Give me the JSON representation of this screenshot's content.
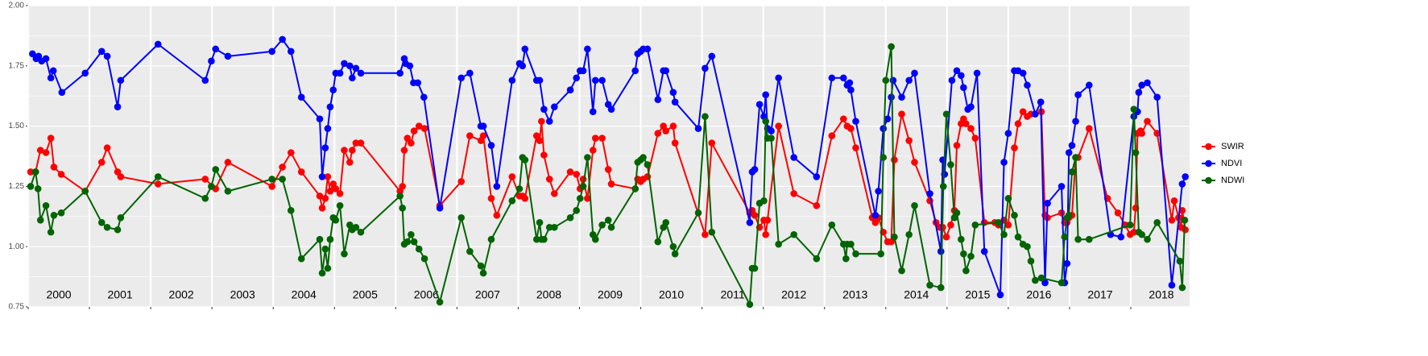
{
  "chart_data": {
    "type": "line",
    "xlim": [
      2000,
      2018.96
    ],
    "xticks": [
      2000,
      2001,
      2002,
      2003,
      2004,
      2005,
      2006,
      2007,
      2008,
      2009,
      2010,
      2011,
      2012,
      2013,
      2014,
      2015,
      2016,
      2017,
      2018
    ],
    "ylim": [
      0.75,
      2.0
    ],
    "yticks": [
      {
        "value": 0.75,
        "label": "0.75"
      },
      {
        "value": 1,
        "label": "1.00"
      },
      {
        "value": 1.25,
        "label": "1.25"
      },
      {
        "value": 1.5,
        "label": "1.50"
      },
      {
        "value": 1.75,
        "label": "1.75"
      },
      {
        "value": 2,
        "label": "2.00"
      }
    ],
    "grid": true,
    "legend": "right",
    "annotations": [
      {
        "text": "2000",
        "x": 2000.5
      },
      {
        "text": "2001",
        "x": 2001.5
      },
      {
        "text": "2002",
        "x": 2002.5
      },
      {
        "text": "2003",
        "x": 2003.5
      },
      {
        "text": "2004",
        "x": 2004.5
      },
      {
        "text": "2005",
        "x": 2005.5
      },
      {
        "text": "2006",
        "x": 2006.5
      },
      {
        "text": "2007",
        "x": 2007.5
      },
      {
        "text": "2008",
        "x": 2008.5
      },
      {
        "text": "2009",
        "x": 2009.5
      },
      {
        "text": "2010",
        "x": 2010.5
      },
      {
        "text": "2011",
        "x": 2011.5
      },
      {
        "text": "2012",
        "x": 2012.5
      },
      {
        "text": "2013",
        "x": 2013.5
      },
      {
        "text": "2014",
        "x": 2014.5
      },
      {
        "text": "2015",
        "x": 2015.5
      },
      {
        "text": "2016",
        "x": 2016.5
      },
      {
        "text": "2017",
        "x": 2017.5
      },
      {
        "text": "2018",
        "x": 2018.5
      }
    ],
    "series": [
      {
        "name": "SWIR",
        "color": "#ff0000",
        "x": [
          2000.04,
          2000.12,
          2000.2,
          2000.29,
          2000.37,
          2000.42,
          2000.54,
          2000.93,
          2001.2,
          2001.29,
          2001.46,
          2001.51,
          2002.12,
          2002.89,
          2003.06,
          2003.26,
          2003.98,
          2004.15,
          2004.29,
          2004.46,
          2004.76,
          2004.8,
          2004.85,
          2004.89,
          2004.93,
          2004.98,
          2005.02,
          2005.09,
          2005.16,
          2005.25,
          2005.29,
          2005.35,
          2005.43,
          2006.07,
          2006.11,
          2006.14,
          2006.19,
          2006.25,
          2006.3,
          2006.38,
          2006.47,
          2006.72,
          2007.07,
          2007.21,
          2007.39,
          2007.43,
          2007.56,
          2007.65,
          2007.9,
          2008.02,
          2008.07,
          2008.11,
          2008.3,
          2008.35,
          2008.38,
          2008.42,
          2008.51,
          2008.59,
          2008.85,
          2008.95,
          2009.01,
          2009.06,
          2009.13,
          2009.22,
          2009.26,
          2009.37,
          2009.47,
          2009.52,
          2009.91,
          2009.95,
          2010.0,
          2010.04,
          2010.11,
          2010.28,
          2010.37,
          2010.41,
          2010.53,
          2010.56,
          2011.05,
          2011.16,
          2011.78,
          2011.82,
          2011.86,
          2011.94,
          2012.01,
          2012.04,
          2012.07,
          2012.25,
          2012.5,
          2012.87,
          2013.12,
          2013.31,
          2013.37,
          2013.43,
          2013.51,
          2013.78,
          2013.83,
          2013.88,
          2013.96,
          2014.03,
          2014.09,
          2014.14,
          2014.26,
          2014.38,
          2014.47,
          2014.72,
          2014.82,
          2014.88,
          2014.93,
          2014.99,
          2015.06,
          2015.12,
          2015.16,
          2015.23,
          2015.27,
          2015.31,
          2015.39,
          2015.46,
          2015.61,
          2015.78,
          2015.84,
          2015.93,
          2016.0,
          2016.1,
          2016.16,
          2016.24,
          2016.31,
          2016.37,
          2016.54,
          2016.6,
          2016.64,
          2016.87,
          2016.92,
          2016.96,
          2016.99,
          2017.04,
          2017.1,
          2017.14,
          2017.32,
          2017.62,
          2017.79,
          2017.91,
          2017.99,
          2018.05,
          2018.08,
          2018.11,
          2018.16,
          2018.18,
          2018.27,
          2018.43,
          2018.67,
          2018.71,
          2018.78,
          2018.82,
          2018.84,
          2018.89
        ],
        "values": [
          1.31,
          1.31,
          1.4,
          1.39,
          1.45,
          1.33,
          1.3,
          1.23,
          1.35,
          1.41,
          1.31,
          1.29,
          1.26,
          1.28,
          1.24,
          1.35,
          1.25,
          1.33,
          1.39,
          1.31,
          1.21,
          1.16,
          1.2,
          1.29,
          1.23,
          1.26,
          1.24,
          1.22,
          1.4,
          1.35,
          1.4,
          1.43,
          1.43,
          1.23,
          1.25,
          1.4,
          1.45,
          1.43,
          1.48,
          1.5,
          1.49,
          1.17,
          1.27,
          1.46,
          1.44,
          1.46,
          1.2,
          1.13,
          1.29,
          1.21,
          1.21,
          1.2,
          1.46,
          1.44,
          1.52,
          1.38,
          1.28,
          1.22,
          1.31,
          1.3,
          1.24,
          1.28,
          1.2,
          1.4,
          1.45,
          1.45,
          1.32,
          1.26,
          1.24,
          1.28,
          1.27,
          1.28,
          1.29,
          1.47,
          1.5,
          1.48,
          1.5,
          1.43,
          1.05,
          1.43,
          1.14,
          1.15,
          1.13,
          1.08,
          1.11,
          1.05,
          1.11,
          1.5,
          1.22,
          1.17,
          1.46,
          1.53,
          1.5,
          1.49,
          1.41,
          1.12,
          1.1,
          1.12,
          1.06,
          1.02,
          1.02,
          1.36,
          1.55,
          1.44,
          1.35,
          1.19,
          1.1,
          1.08,
          1.08,
          1.04,
          1.09,
          1.15,
          1.42,
          1.51,
          1.53,
          1.51,
          1.49,
          1.45,
          1.1,
          1.1,
          1.09,
          1.11,
          1.09,
          1.41,
          1.51,
          1.56,
          1.54,
          1.55,
          1.56,
          1.13,
          1.12,
          1.14,
          1.1,
          1.1,
          1.12,
          1.13,
          1.37,
          1.37,
          1.49,
          1.2,
          1.14,
          1.09,
          1.05,
          1.06,
          1.16,
          1.47,
          1.48,
          1.47,
          1.52,
          1.47,
          1.11,
          1.19,
          1.12,
          1.08,
          1.15,
          1.07
        ]
      },
      {
        "name": "NDVI",
        "color": "#0000ff",
        "x": [
          2000.07,
          2000.13,
          2000.17,
          2000.22,
          2000.29,
          2000.37,
          2000.41,
          2000.55,
          2000.93,
          2001.2,
          2001.29,
          2001.46,
          2001.51,
          2002.12,
          2002.89,
          2002.99,
          2003.06,
          2003.26,
          2003.98,
          2004.15,
          2004.29,
          2004.46,
          2004.76,
          2004.8,
          2004.85,
          2004.89,
          2004.93,
          2004.98,
          2005.02,
          2005.09,
          2005.16,
          2005.25,
          2005.29,
          2005.35,
          2005.43,
          2006.07,
          2006.14,
          2006.16,
          2006.23,
          2006.29,
          2006.36,
          2006.46,
          2006.72,
          2007.07,
          2007.21,
          2007.39,
          2007.43,
          2007.56,
          2007.65,
          2007.9,
          2008.02,
          2008.07,
          2008.11,
          2008.3,
          2008.35,
          2008.42,
          2008.51,
          2008.59,
          2008.85,
          2008.95,
          2009.01,
          2009.06,
          2009.13,
          2009.22,
          2009.26,
          2009.37,
          2009.47,
          2009.52,
          2009.91,
          2009.95,
          2010.0,
          2010.04,
          2010.11,
          2010.28,
          2010.37,
          2010.41,
          2010.53,
          2010.56,
          2010.94,
          2011.05,
          2011.16,
          2011.78,
          2011.82,
          2011.86,
          2011.94,
          2012.01,
          2012.04,
          2012.07,
          2012.13,
          2012.25,
          2012.5,
          2012.87,
          2013.12,
          2013.31,
          2013.37,
          2013.41,
          2013.43,
          2013.51,
          2013.83,
          2013.88,
          2013.96,
          2014.03,
          2014.09,
          2014.12,
          2014.26,
          2014.38,
          2014.47,
          2014.72,
          2014.9,
          2014.93,
          2014.96,
          2015.08,
          2015.16,
          2015.23,
          2015.27,
          2015.34,
          2015.39,
          2015.49,
          2015.61,
          2015.87,
          2015.93,
          2016.0,
          2016.1,
          2016.16,
          2016.24,
          2016.31,
          2016.44,
          2016.53,
          2016.6,
          2016.64,
          2016.87,
          2016.92,
          2016.96,
          2016.99,
          2017.04,
          2017.1,
          2017.14,
          2017.32,
          2017.67,
          2017.84,
          2018.05,
          2018.11,
          2018.13,
          2018.18,
          2018.27,
          2018.43,
          2018.67,
          2018.84,
          2018.89
        ],
        "values": [
          1.8,
          1.78,
          1.79,
          1.77,
          1.78,
          1.7,
          1.73,
          1.64,
          1.72,
          1.81,
          1.79,
          1.58,
          1.69,
          1.84,
          1.69,
          1.77,
          1.82,
          1.79,
          1.81,
          1.86,
          1.81,
          1.62,
          1.53,
          1.29,
          1.41,
          1.49,
          1.58,
          1.65,
          1.72,
          1.72,
          1.76,
          1.75,
          1.7,
          1.74,
          1.72,
          1.72,
          1.78,
          1.76,
          1.75,
          1.68,
          1.68,
          1.62,
          1.16,
          1.7,
          1.72,
          1.5,
          1.5,
          1.42,
          1.25,
          1.69,
          1.76,
          1.75,
          1.82,
          1.69,
          1.69,
          1.57,
          1.52,
          1.58,
          1.65,
          1.7,
          1.73,
          1.73,
          1.82,
          1.56,
          1.69,
          1.69,
          1.59,
          1.57,
          1.73,
          1.8,
          1.81,
          1.82,
          1.82,
          1.61,
          1.73,
          1.73,
          1.64,
          1.6,
          1.49,
          1.74,
          1.79,
          1.1,
          1.31,
          1.32,
          1.59,
          1.54,
          1.63,
          1.49,
          1.48,
          1.7,
          1.37,
          1.29,
          1.7,
          1.7,
          1.67,
          1.68,
          1.65,
          1.52,
          1.13,
          1.23,
          1.49,
          1.53,
          1.62,
          1.69,
          1.62,
          1.69,
          1.72,
          1.22,
          0.98,
          1.36,
          1.3,
          1.69,
          1.73,
          1.71,
          1.66,
          1.57,
          1.58,
          1.72,
          0.98,
          0.8,
          1.35,
          1.47,
          1.73,
          1.73,
          1.72,
          1.67,
          1.55,
          1.6,
          0.85,
          1.18,
          1.25,
          0.85,
          0.93,
          1.39,
          1.42,
          1.52,
          1.63,
          1.67,
          1.05,
          1.04,
          1.54,
          1.56,
          1.64,
          1.67,
          1.68,
          1.62,
          0.84,
          1.26,
          1.29
        ]
      },
      {
        "name": "NDWI",
        "color": "#006400",
        "x": [
          2000.04,
          2000.12,
          2000.16,
          2000.2,
          2000.29,
          2000.37,
          2000.42,
          2000.54,
          2000.93,
          2001.2,
          2001.29,
          2001.46,
          2001.51,
          2002.12,
          2002.89,
          2002.99,
          2003.06,
          2003.26,
          2003.98,
          2004.15,
          2004.29,
          2004.46,
          2004.76,
          2004.8,
          2004.85,
          2004.89,
          2004.93,
          2004.98,
          2005.02,
          2005.09,
          2005.16,
          2005.25,
          2005.29,
          2005.35,
          2005.43,
          2006.07,
          2006.11,
          2006.14,
          2006.19,
          2006.25,
          2006.3,
          2006.38,
          2006.47,
          2006.72,
          2007.07,
          2007.21,
          2007.39,
          2007.43,
          2007.56,
          2007.9,
          2008.02,
          2008.07,
          2008.11,
          2008.3,
          2008.35,
          2008.38,
          2008.42,
          2008.51,
          2008.59,
          2008.85,
          2008.95,
          2009.01,
          2009.06,
          2009.13,
          2009.22,
          2009.26,
          2009.37,
          2009.47,
          2009.52,
          2009.91,
          2009.95,
          2010.0,
          2010.04,
          2010.11,
          2010.28,
          2010.37,
          2010.41,
          2010.53,
          2010.56,
          2010.94,
          2011.05,
          2011.16,
          2011.78,
          2011.82,
          2011.86,
          2011.94,
          2012.01,
          2012.04,
          2012.07,
          2012.13,
          2012.25,
          2012.5,
          2012.87,
          2013.12,
          2013.31,
          2013.35,
          2013.37,
          2013.43,
          2013.51,
          2013.92,
          2013.96,
          2014.0,
          2014.09,
          2014.14,
          2014.26,
          2014.38,
          2014.47,
          2014.72,
          2014.9,
          2014.94,
          2014.99,
          2015.06,
          2015.12,
          2015.16,
          2015.23,
          2015.27,
          2015.31,
          2015.39,
          2015.46,
          2015.84,
          2015.93,
          2016.0,
          2016.1,
          2016.16,
          2016.24,
          2016.31,
          2016.37,
          2016.44,
          2016.54,
          2016.87,
          2016.92,
          2016.96,
          2016.99,
          2017.04,
          2017.1,
          2017.14,
          2017.32,
          2017.99,
          2018.05,
          2018.08,
          2018.13,
          2018.18,
          2018.27,
          2018.43,
          2018.8,
          2018.84,
          2018.88
        ],
        "values": [
          1.25,
          1.31,
          1.24,
          1.11,
          1.17,
          1.06,
          1.13,
          1.14,
          1.23,
          1.1,
          1.08,
          1.07,
          1.12,
          1.29,
          1.2,
          1.25,
          1.32,
          1.23,
          1.28,
          1.28,
          1.15,
          0.95,
          1.03,
          0.89,
          0.99,
          0.91,
          1.03,
          1.12,
          1.11,
          1.17,
          0.97,
          1.09,
          1.07,
          1.08,
          1.06,
          1.21,
          1.16,
          1.01,
          1.02,
          1.05,
          1.02,
          0.99,
          0.95,
          0.77,
          1.12,
          0.98,
          0.92,
          0.89,
          1.03,
          1.19,
          1.24,
          1.37,
          1.36,
          1.03,
          1.1,
          1.03,
          1.03,
          1.08,
          1.08,
          1.12,
          1.15,
          1.2,
          1.25,
          1.37,
          1.05,
          1.03,
          1.09,
          1.11,
          1.08,
          1.24,
          1.35,
          1.36,
          1.37,
          1.34,
          1.02,
          1.08,
          1.1,
          1.0,
          0.97,
          1.14,
          1.54,
          1.06,
          0.76,
          0.91,
          0.91,
          1.18,
          1.19,
          1.52,
          1.45,
          1.45,
          1.01,
          1.05,
          0.95,
          1.09,
          1.01,
          0.95,
          1.01,
          1.01,
          0.97,
          0.97,
          1.37,
          1.69,
          1.83,
          1.04,
          0.9,
          1.05,
          1.17,
          0.84,
          0.83,
          1.25,
          1.55,
          1.34,
          1.12,
          1.14,
          1.03,
          0.97,
          0.9,
          0.96,
          1.09,
          1.1,
          1.05,
          1.2,
          1.13,
          1.04,
          1.01,
          1.0,
          0.94,
          0.86,
          0.87,
          0.85,
          1.04,
          1.12,
          1.13,
          1.31,
          1.37,
          1.03,
          1.03,
          1.09,
          1.57,
          1.39,
          1.06,
          1.05,
          1.03,
          1.1,
          0.94,
          0.83,
          1.11
        ]
      }
    ]
  }
}
